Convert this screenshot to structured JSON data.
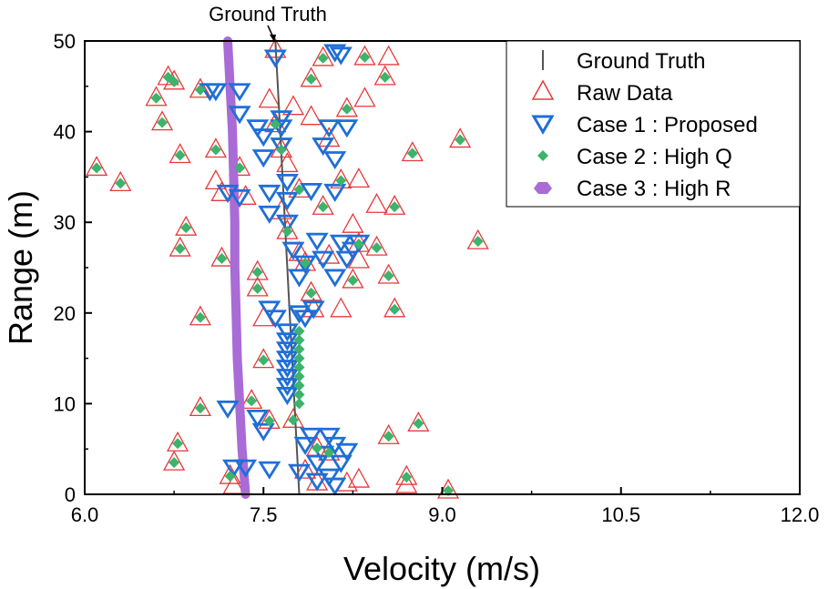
{
  "chart_data": {
    "type": "scatter",
    "title": "",
    "xlabel": "Velocity (m/s)",
    "ylabel": "Range (m)",
    "xlim": [
      6.0,
      12.0
    ],
    "ylim": [
      0,
      50
    ],
    "xticks": [
      6.0,
      7.5,
      9.0,
      10.5,
      12.0
    ],
    "xtick_labels": [
      "6.0",
      "7.5",
      "9.0",
      "10.5",
      "12.0"
    ],
    "yticks": [
      0,
      10,
      20,
      30,
      40,
      50
    ],
    "ytick_labels": [
      "0",
      "10",
      "20",
      "30",
      "40",
      "50"
    ],
    "grid": false,
    "legend_position": "top-right",
    "annotation": {
      "text": "Ground Truth",
      "x": 7.6,
      "y": 50
    },
    "colors": {
      "ground_truth": "#555555",
      "raw_data": "#e8393a",
      "case1": "#1f6fd6",
      "case2": "#3db36b",
      "case3": "#a96bd6"
    },
    "series": [
      {
        "name": "Ground Truth",
        "label": "Ground Truth",
        "kind": "line",
        "points": [
          [
            7.6,
            50
          ],
          [
            7.62,
            45
          ],
          [
            7.64,
            40
          ],
          [
            7.66,
            35
          ],
          [
            7.68,
            30
          ],
          [
            7.7,
            25
          ],
          [
            7.72,
            20
          ],
          [
            7.74,
            15
          ],
          [
            7.76,
            10
          ],
          [
            7.78,
            5
          ],
          [
            7.8,
            0
          ]
        ]
      },
      {
        "name": "Raw Data",
        "label": "Raw Data",
        "kind": "triangle-up",
        "points": [
          [
            6.1,
            36
          ],
          [
            6.3,
            34.3
          ],
          [
            6.6,
            43.7
          ],
          [
            6.65,
            41
          ],
          [
            6.7,
            46
          ],
          [
            6.75,
            45.5
          ],
          [
            6.8,
            37.4
          ],
          [
            6.85,
            29.4
          ],
          [
            6.8,
            27.1
          ],
          [
            6.75,
            3.5
          ],
          [
            6.78,
            5.6
          ],
          [
            6.97,
            44.6
          ],
          [
            6.97,
            19.5
          ],
          [
            6.97,
            9.5
          ],
          [
            7.1,
            38
          ],
          [
            7.1,
            34.5
          ],
          [
            7.15,
            26
          ],
          [
            7.15,
            33.2
          ],
          [
            7.22,
            2
          ],
          [
            7.25,
            0.9
          ],
          [
            7.3,
            36
          ],
          [
            7.35,
            32.8
          ],
          [
            7.4,
            10.3
          ],
          [
            7.45,
            24.5
          ],
          [
            7.45,
            22.7
          ],
          [
            7.5,
            14.8
          ],
          [
            7.5,
            19.4
          ],
          [
            7.55,
            8.1
          ],
          [
            7.55,
            43.5
          ],
          [
            7.6,
            40.8
          ],
          [
            7.6,
            49
          ],
          [
            7.65,
            38
          ],
          [
            7.65,
            31.2
          ],
          [
            7.7,
            29
          ],
          [
            7.7,
            36.4
          ],
          [
            7.75,
            42.7
          ],
          [
            7.75,
            8.2
          ],
          [
            7.8,
            33.6
          ],
          [
            7.8,
            26.6
          ],
          [
            7.85,
            25.5
          ],
          [
            7.85,
            2.6
          ],
          [
            7.9,
            45.8
          ],
          [
            7.9,
            41.6
          ],
          [
            7.9,
            22.2
          ],
          [
            7.92,
            20.4
          ],
          [
            7.95,
            5.1
          ],
          [
            7.95,
            1.3
          ],
          [
            8.0,
            48.1
          ],
          [
            8.0,
            31.7
          ],
          [
            8.05,
            39.2
          ],
          [
            8.05,
            26.3
          ],
          [
            8.05,
            4.6
          ],
          [
            8.15,
            34.6
          ],
          [
            8.15,
            20.4
          ],
          [
            8.2,
            42.5
          ],
          [
            8.2,
            1.2
          ],
          [
            8.25,
            23.6
          ],
          [
            8.25,
            29.7
          ],
          [
            8.3,
            27.6
          ],
          [
            8.3,
            25.8
          ],
          [
            8.3,
            34.7
          ],
          [
            8.3,
            1.6
          ],
          [
            8.35,
            48.2
          ],
          [
            8.35,
            43.6
          ],
          [
            8.45,
            27.2
          ],
          [
            8.45,
            31.9
          ],
          [
            8.52,
            46
          ],
          [
            8.55,
            48.2
          ],
          [
            8.55,
            6.4
          ],
          [
            8.55,
            24.1
          ],
          [
            8.6,
            20.4
          ],
          [
            8.6,
            31.7
          ],
          [
            8.7,
            1.9
          ],
          [
            8.7,
            1
          ],
          [
            8.75,
            37.6
          ],
          [
            8.8,
            7.8
          ],
          [
            9.05,
            0.4
          ],
          [
            9.15,
            39.1
          ],
          [
            9.3,
            27.9
          ]
        ]
      },
      {
        "name": "Case 1 : Proposed",
        "label": "Case 1 : Proposed",
        "kind": "triangle-down",
        "points": [
          [
            7.05,
            44.5
          ],
          [
            7.1,
            44.5
          ],
          [
            7.2,
            33.3
          ],
          [
            7.3,
            44.5
          ],
          [
            7.3,
            42
          ],
          [
            7.3,
            32.8
          ],
          [
            7.45,
            40.5
          ],
          [
            7.5,
            39.5
          ],
          [
            7.5,
            37.2
          ],
          [
            7.55,
            33.3
          ],
          [
            7.55,
            31
          ],
          [
            7.6,
            48.2
          ],
          [
            7.65,
            41.5
          ],
          [
            7.65,
            40.5
          ],
          [
            7.65,
            38.5
          ],
          [
            7.7,
            34.5
          ],
          [
            7.7,
            32.5
          ],
          [
            7.7,
            30
          ],
          [
            7.75,
            27
          ],
          [
            7.8,
            24
          ],
          [
            7.8,
            20
          ],
          [
            7.85,
            25.5
          ],
          [
            7.9,
            33.5
          ],
          [
            7.95,
            28
          ],
          [
            8.0,
            26
          ],
          [
            8.0,
            38.5
          ],
          [
            8.05,
            40.5
          ],
          [
            8.1,
            37
          ],
          [
            8.1,
            24
          ],
          [
            8.15,
            27.8
          ],
          [
            8.2,
            26
          ],
          [
            8.25,
            27
          ],
          [
            8.3,
            27.8
          ],
          [
            8.15,
            48.5
          ],
          [
            8.1,
            48.8
          ],
          [
            8.2,
            40.5
          ],
          [
            8.1,
            33.4
          ],
          [
            7.85,
            19.5
          ],
          [
            7.92,
            20.5
          ],
          [
            7.6,
            19.5
          ],
          [
            7.55,
            20.5
          ],
          [
            7.2,
            9.5
          ],
          [
            7.25,
            3
          ],
          [
            7.35,
            3
          ],
          [
            7.55,
            2.8
          ],
          [
            7.8,
            2.5
          ],
          [
            7.85,
            5.5
          ],
          [
            7.9,
            6.5
          ],
          [
            7.95,
            3.5
          ],
          [
            7.95,
            1.5
          ],
          [
            8.0,
            4.5
          ],
          [
            8.05,
            6.5
          ],
          [
            8.05,
            2
          ],
          [
            8.1,
            5.5
          ],
          [
            8.15,
            3.5
          ],
          [
            8.2,
            4.8
          ],
          [
            8.1,
            1
          ],
          [
            7.45,
            8.5
          ],
          [
            7.5,
            7
          ],
          [
            7.7,
            18
          ],
          [
            7.7,
            17
          ],
          [
            7.7,
            16
          ],
          [
            7.7,
            15
          ],
          [
            7.7,
            14
          ],
          [
            7.7,
            13
          ],
          [
            7.7,
            12
          ],
          [
            7.7,
            11
          ]
        ]
      },
      {
        "name": "Case 2 : High Q",
        "label": "Case 2 : High Q",
        "kind": "diamond",
        "points": [
          [
            6.1,
            36
          ],
          [
            6.3,
            34.3
          ],
          [
            6.6,
            43.7
          ],
          [
            6.65,
            41
          ],
          [
            6.7,
            46
          ],
          [
            6.75,
            45.5
          ],
          [
            6.8,
            37.4
          ],
          [
            6.85,
            29.4
          ],
          [
            6.8,
            27.1
          ],
          [
            6.75,
            3.5
          ],
          [
            6.78,
            5.6
          ],
          [
            6.97,
            44.6
          ],
          [
            6.97,
            19.5
          ],
          [
            6.97,
            9.5
          ],
          [
            7.1,
            38
          ],
          [
            7.15,
            26
          ],
          [
            7.22,
            2
          ],
          [
            7.3,
            36
          ],
          [
            7.4,
            10.3
          ],
          [
            7.45,
            24.5
          ],
          [
            7.45,
            22.7
          ],
          [
            7.5,
            14.8
          ],
          [
            7.55,
            8.1
          ],
          [
            7.6,
            40.8
          ],
          [
            7.65,
            38
          ],
          [
            7.7,
            29
          ],
          [
            7.75,
            8.2
          ],
          [
            7.8,
            33.6
          ],
          [
            7.85,
            25.5
          ],
          [
            7.9,
            45.8
          ],
          [
            7.9,
            22.2
          ],
          [
            7.95,
            5.1
          ],
          [
            8.0,
            48.1
          ],
          [
            8.0,
            31.7
          ],
          [
            8.05,
            4.6
          ],
          [
            8.15,
            34.6
          ],
          [
            8.2,
            42.5
          ],
          [
            8.25,
            23.6
          ],
          [
            8.3,
            27.6
          ],
          [
            8.35,
            48.2
          ],
          [
            8.45,
            27.2
          ],
          [
            8.52,
            46
          ],
          [
            8.55,
            6.4
          ],
          [
            8.55,
            24.1
          ],
          [
            8.6,
            20.4
          ],
          [
            8.6,
            31.7
          ],
          [
            8.7,
            1.9
          ],
          [
            8.75,
            37.6
          ],
          [
            8.8,
            7.8
          ],
          [
            9.05,
            0.4
          ],
          [
            9.15,
            39.1
          ],
          [
            9.3,
            27.9
          ],
          [
            7.8,
            18
          ],
          [
            7.8,
            17
          ],
          [
            7.8,
            16
          ],
          [
            7.8,
            15
          ],
          [
            7.8,
            14
          ],
          [
            7.8,
            13
          ],
          [
            7.8,
            12
          ],
          [
            7.8,
            11
          ],
          [
            7.8,
            10
          ]
        ]
      },
      {
        "name": "Case 3 : High R",
        "label": "Case 3 : High R",
        "kind": "line",
        "points": [
          [
            7.2,
            50
          ],
          [
            7.22,
            45
          ],
          [
            7.24,
            40
          ],
          [
            7.25,
            35
          ],
          [
            7.26,
            30
          ],
          [
            7.26,
            25
          ],
          [
            7.27,
            20
          ],
          [
            7.28,
            15
          ],
          [
            7.3,
            10
          ],
          [
            7.32,
            5
          ],
          [
            7.35,
            0
          ]
        ]
      }
    ]
  }
}
